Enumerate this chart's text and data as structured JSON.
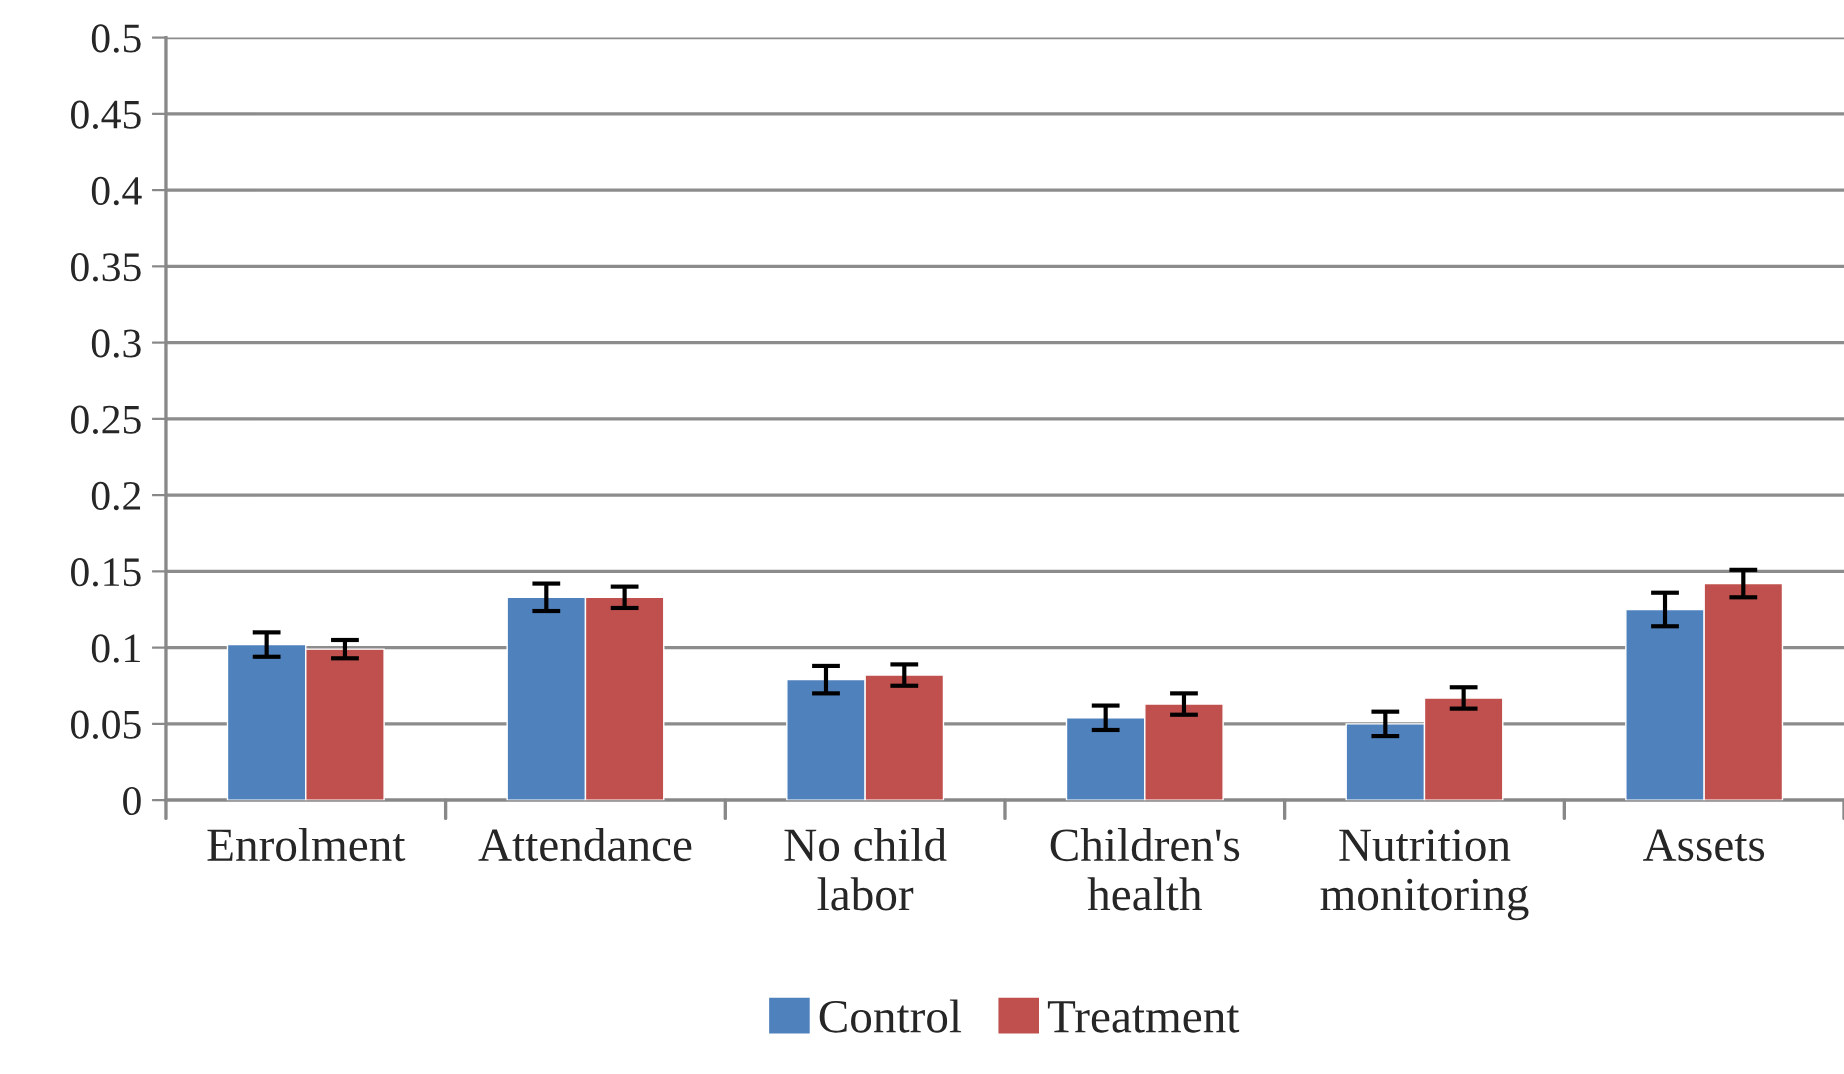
{
  "chart_data": {
    "type": "bar",
    "categories": [
      "Enrolment",
      "Attendance",
      "No child\nlabor",
      "Children's\nhealth",
      "Nutrition\nmonitoring",
      "Assets"
    ],
    "series": [
      {
        "name": "Control",
        "color": "#4f81bd",
        "values": [
          0.102,
          0.133,
          0.079,
          0.054,
          0.05,
          0.125
        ],
        "errors": [
          0.008,
          0.009,
          0.009,
          0.008,
          0.008,
          0.011
        ]
      },
      {
        "name": "Treatment",
        "color": "#c0504d",
        "values": [
          0.099,
          0.133,
          0.082,
          0.063,
          0.067,
          0.142
        ],
        "errors": [
          0.006,
          0.007,
          0.007,
          0.007,
          0.007,
          0.009
        ]
      }
    ],
    "ylim": [
      0,
      0.5
    ],
    "yticks": [
      0,
      {
        "value": 0.05,
        "label": "0.05"
      },
      {
        "value": 0.1,
        "label": "0.1"
      },
      {
        "value": 0.15,
        "label": "0.15"
      },
      {
        "value": 0.2,
        "label": "0.2"
      },
      {
        "value": 0.25,
        "label": "0.25"
      },
      {
        "value": 0.3,
        "label": "0.3"
      },
      {
        "value": 0.35,
        "label": "0.35"
      },
      {
        "value": 0.4,
        "label": "0.4"
      },
      {
        "value": 0.45,
        "label": "0.45"
      },
      {
        "value": 0.5,
        "label": "0.5"
      }
    ],
    "grid": "y",
    "legend": "bottom"
  }
}
